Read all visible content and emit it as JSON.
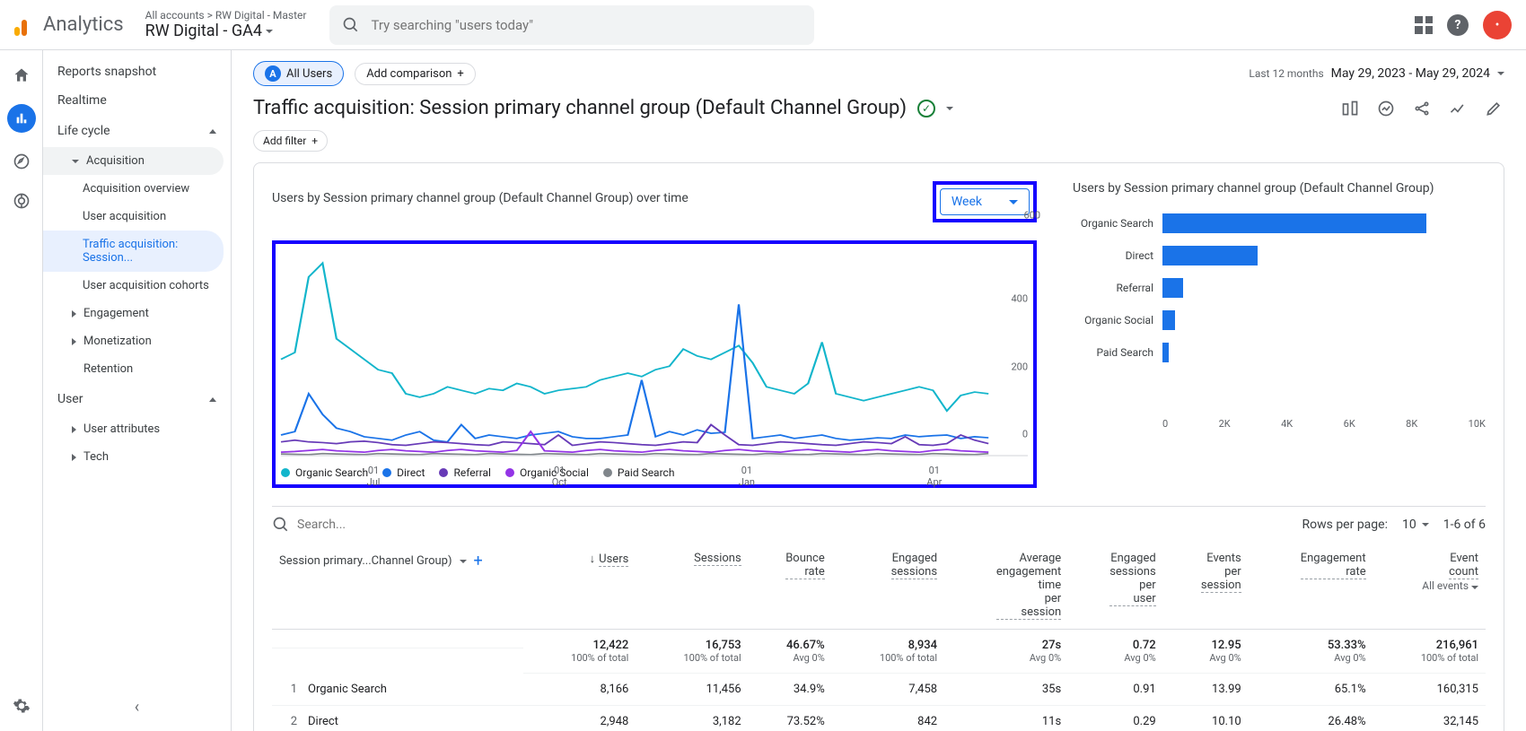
{
  "header": {
    "logo_text": "Analytics",
    "breadcrumb": "All accounts > RW Digital - Master",
    "property": "RW Digital - GA4",
    "search_placeholder": "Try searching \"users today\"",
    "avatar_letter": "•"
  },
  "sidebar": {
    "snapshot": "Reports snapshot",
    "realtime": "Realtime",
    "lifecycle": "Life cycle",
    "acquisition": "Acquisition",
    "acq_overview": "Acquisition overview",
    "user_acq": "User acquisition",
    "traffic_acq": "Traffic acquisition: Session...",
    "user_cohorts": "User acquisition cohorts",
    "engagement": "Engagement",
    "monetization": "Monetization",
    "retention": "Retention",
    "user": "User",
    "user_attr": "User attributes",
    "tech": "Tech"
  },
  "main": {
    "all_users": "All Users",
    "add_comparison": "Add comparison",
    "date_label": "Last 12 months",
    "date_range": "May 29, 2023 - May 29, 2024",
    "title": "Traffic acquisition: Session primary channel group (Default Channel Group)",
    "add_filter": "Add filter"
  },
  "line_chart": {
    "title": "Users by Session primary channel group (Default Channel Group) over time",
    "granularity": "Week",
    "y_ticks": [
      "600",
      "400",
      "200",
      "0"
    ],
    "x_ticks": [
      {
        "d": "01",
        "m": "Jul"
      },
      {
        "d": "01",
        "m": "Oct"
      },
      {
        "d": "01",
        "m": "Jan"
      },
      {
        "d": "01",
        "m": "Apr"
      }
    ],
    "series": [
      {
        "name": "Organic Search",
        "color": "#12b5cb",
        "data": [
          280,
          300,
          520,
          560,
          340,
          310,
          280,
          250,
          240,
          180,
          170,
          180,
          200,
          190,
          180,
          195,
          190,
          210,
          200,
          180,
          190,
          195,
          200,
          220,
          230,
          240,
          230,
          250,
          260,
          310,
          290,
          280,
          300,
          320,
          270,
          200,
          190,
          180,
          210,
          330,
          180,
          170,
          160,
          170,
          180,
          190,
          200,
          190,
          130,
          175,
          185,
          180
        ]
      },
      {
        "name": "Direct",
        "color": "#1a73e8",
        "data": [
          60,
          70,
          180,
          120,
          80,
          70,
          55,
          50,
          45,
          60,
          70,
          45,
          40,
          90,
          50,
          60,
          55,
          50,
          60,
          65,
          70,
          55,
          50,
          50,
          55,
          60,
          220,
          55,
          70,
          60,
          75,
          65,
          68,
          440,
          50,
          55,
          60,
          50,
          55,
          60,
          50,
          45,
          48,
          52,
          50,
          60,
          55,
          58,
          60,
          50,
          55,
          52
        ]
      },
      {
        "name": "Referral",
        "color": "#673ab7",
        "data": [
          40,
          45,
          40,
          38,
          35,
          40,
          42,
          38,
          32,
          30,
          35,
          40,
          38,
          35,
          32,
          30,
          40,
          38,
          35,
          32,
          60,
          30,
          35,
          40,
          38,
          35,
          32,
          30,
          35,
          40,
          38,
          90,
          60,
          32,
          30,
          35,
          40,
          38,
          35,
          32,
          30,
          35,
          40,
          38,
          35,
          55,
          32,
          30,
          35,
          60,
          45,
          35
        ]
      },
      {
        "name": "Organic Social",
        "color": "#9334e6",
        "data": [
          10,
          12,
          15,
          18,
          14,
          12,
          10,
          15,
          18,
          14,
          12,
          10,
          15,
          18,
          14,
          12,
          10,
          15,
          70,
          14,
          12,
          10,
          15,
          18,
          14,
          12,
          10,
          15,
          18,
          14,
          12,
          10,
          15,
          18,
          14,
          12,
          10,
          15,
          18,
          14,
          12,
          10,
          15,
          18,
          14,
          12,
          10,
          15,
          18,
          14,
          12,
          10
        ]
      },
      {
        "name": "Paid Search",
        "color": "#80868b",
        "data": [
          5,
          4,
          3,
          6,
          5,
          4,
          3,
          6,
          5,
          4,
          3,
          6,
          5,
          4,
          3,
          6,
          5,
          4,
          3,
          6,
          5,
          4,
          3,
          6,
          5,
          4,
          3,
          6,
          5,
          4,
          3,
          6,
          5,
          4,
          3,
          6,
          5,
          4,
          3,
          6,
          5,
          4,
          3,
          6,
          5,
          4,
          3,
          6,
          5,
          4,
          3,
          6
        ]
      }
    ],
    "y_max": 600
  },
  "bar_chart": {
    "title": "Users by Session primary channel group (Default Channel Group)",
    "color": "#1a73e8",
    "x_ticks": [
      "0",
      "2K",
      "4K",
      "6K",
      "8K",
      "10K"
    ],
    "x_max": 10000,
    "bars": [
      {
        "label": "Organic Search",
        "value": 8166
      },
      {
        "label": "Direct",
        "value": 2948
      },
      {
        "label": "Referral",
        "value": 650
      },
      {
        "label": "Organic Social",
        "value": 400
      },
      {
        "label": "Paid Search",
        "value": 200
      }
    ]
  },
  "table_controls": {
    "search_placeholder": "Search...",
    "rows_label": "Rows per page:",
    "rows_value": "10",
    "range": "1-6 of 6"
  },
  "table": {
    "first_col": "Session primary...Channel Group)",
    "columns": [
      {
        "name": "Users",
        "sort": true
      },
      {
        "name": "Sessions"
      },
      {
        "name": "Bounce rate"
      },
      {
        "name": "Engaged sessions"
      },
      {
        "name": "Average engagement time per session"
      },
      {
        "name": "Engaged sessions per user"
      },
      {
        "name": "Events per session"
      },
      {
        "name": "Engagement rate"
      },
      {
        "name": "Event count",
        "sub": "All events"
      }
    ],
    "summary": {
      "values": [
        "12,422",
        "16,753",
        "46.67%",
        "8,934",
        "27s",
        "0.72",
        "12.95",
        "53.33%",
        "216,961"
      ],
      "subs": [
        "100% of total",
        "100% of total",
        "Avg 0%",
        "100% of total",
        "Avg 0%",
        "Avg 0%",
        "Avg 0%",
        "Avg 0%",
        "100% of total"
      ]
    },
    "rows": [
      {
        "idx": "1",
        "name": "Organic Search",
        "values": [
          "8,166",
          "11,456",
          "34.9%",
          "7,458",
          "35s",
          "0.91",
          "13.99",
          "65.1%",
          "160,315"
        ]
      },
      {
        "idx": "2",
        "name": "Direct",
        "values": [
          "2,948",
          "3,182",
          "73.52%",
          "842",
          "11s",
          "0.29",
          "10.10",
          "26.48%",
          "32,145"
        ]
      }
    ]
  }
}
